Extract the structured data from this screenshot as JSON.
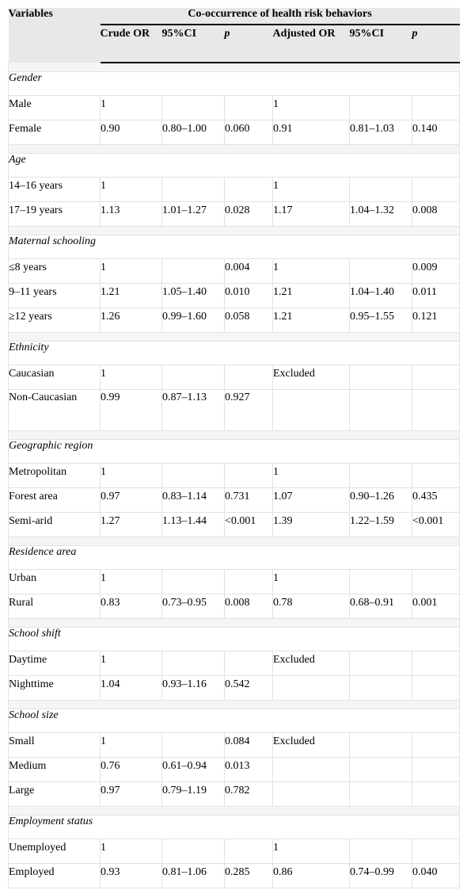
{
  "header": {
    "variables": "Variables",
    "group": "Co-occurrence of health risk behaviors",
    "crude_or": "Crude OR",
    "ci1": "95%CI",
    "p1": "p",
    "adjusted_or": "Adjusted OR",
    "ci2": "95%CI",
    "p2": "p"
  },
  "sections": [
    {
      "title": "Gender",
      "rows": [
        {
          "label": "Male",
          "cells": [
            "1",
            "",
            "",
            "1",
            "",
            ""
          ]
        },
        {
          "label": "Female",
          "cells": [
            "0.90",
            "0.80–1.00",
            "0.060",
            "0.91",
            "0.81–1.03",
            "0.140"
          ]
        }
      ]
    },
    {
      "title": "Age",
      "rows": [
        {
          "label": "14–16 years",
          "cells": [
            "1",
            "",
            "",
            "1",
            "",
            ""
          ]
        },
        {
          "label": "17–19 years",
          "cells": [
            "1.13",
            "1.01–1.27",
            "0.028",
            "1.17",
            "1.04–1.32",
            "0.008"
          ]
        }
      ]
    },
    {
      "title": "Maternal schooling",
      "rows": [
        {
          "label": "≤8 years",
          "cells": [
            "1",
            "",
            "0.004",
            "1",
            "",
            "0.009"
          ]
        },
        {
          "label": "9–11 years",
          "cells": [
            "1.21",
            "1.05–1.40",
            "0.010",
            "1.21",
            "1.04–1.40",
            "0.011"
          ]
        },
        {
          "label": "≥12 years",
          "cells": [
            "1.26",
            "0.99–1.60",
            "0.058",
            "1.21",
            "0.95–1.55",
            "0.121"
          ]
        }
      ]
    },
    {
      "title": "Ethnicity",
      "rows": [
        {
          "label": "Caucasian",
          "cells": [
            "1",
            "",
            "",
            "Excluded",
            "",
            ""
          ]
        },
        {
          "label": "Non-Caucasian",
          "cells": [
            "0.99",
            "0.87–1.13",
            "0.927",
            "",
            "",
            ""
          ]
        }
      ]
    },
    {
      "title": "Geographic region",
      "rows": [
        {
          "label": "Metropolitan",
          "cells": [
            "1",
            "",
            "",
            "1",
            "",
            ""
          ]
        },
        {
          "label": "Forest area",
          "cells": [
            "0.97",
            "0.83–1.14",
            "0.731",
            "1.07",
            "0.90–1.26",
            "0.435"
          ]
        },
        {
          "label": "Semi-arid",
          "cells": [
            "1.27",
            "1.13–1.44",
            "<0.001",
            "1.39",
            "1.22–1.59",
            "<0.001"
          ]
        }
      ]
    },
    {
      "title": "Residence area",
      "rows": [
        {
          "label": "Urban",
          "cells": [
            "1",
            "",
            "",
            "1",
            "",
            ""
          ]
        },
        {
          "label": "Rural",
          "cells": [
            "0.83",
            "0.73–0.95",
            "0.008",
            "0.78",
            "0.68–0.91",
            "0.001"
          ]
        }
      ]
    },
    {
      "title": "School shift",
      "rows": [
        {
          "label": "Daytime",
          "cells": [
            "1",
            "",
            "",
            "Excluded",
            "",
            ""
          ]
        },
        {
          "label": "Nighttime",
          "cells": [
            "1.04",
            "0.93–1.16",
            "0.542",
            "",
            "",
            ""
          ]
        }
      ]
    },
    {
      "title": "School size",
      "rows": [
        {
          "label": "Small",
          "cells": [
            "1",
            "",
            "0.084",
            "Excluded",
            "",
            ""
          ]
        },
        {
          "label": "Medium",
          "cells": [
            "0.76",
            "0.61–0.94",
            "0.013",
            "",
            "",
            ""
          ]
        },
        {
          "label": "Large",
          "cells": [
            "0.97",
            "0.79–1.19",
            "0.782",
            "",
            "",
            ""
          ]
        }
      ]
    },
    {
      "title": "Employment status",
      "rows": [
        {
          "label": "Unemployed",
          "cells": [
            "1",
            "",
            "",
            "1",
            "",
            ""
          ]
        },
        {
          "label": "Employed",
          "cells": [
            "0.93",
            "0.81–1.06",
            "0.285",
            "0.86",
            "0.74–0.99",
            "0.040"
          ]
        }
      ]
    }
  ]
}
